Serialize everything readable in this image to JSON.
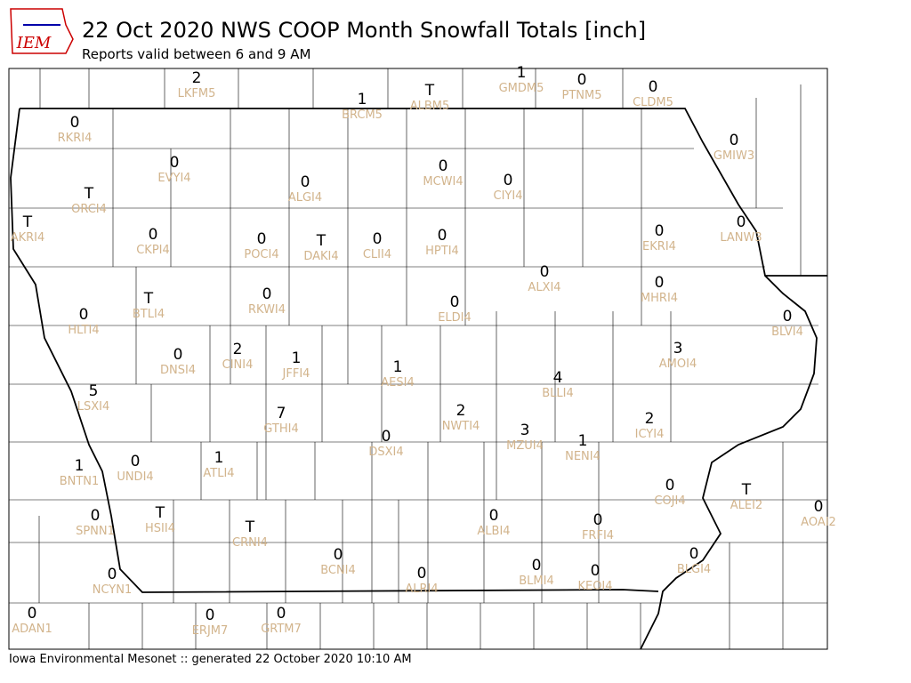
{
  "header": {
    "logo": "IEM",
    "title": "22 Oct 2020 NWS COOP Month Snowfall Totals [inch]",
    "subtitle": "Reports valid between 6 and 9 AM"
  },
  "stations": [
    {
      "value": 2,
      "id": "LKFM5"
    },
    {
      "value": 1,
      "id": "BRCM5"
    },
    {
      "value": "T",
      "id": "ALBM5"
    },
    {
      "value": 1,
      "id": "GMDM5"
    },
    {
      "value": 0,
      "id": "PTNM5"
    },
    {
      "value": 0,
      "id": "CLDM5"
    },
    {
      "value": 0,
      "id": "RKRI4"
    },
    {
      "value": 0,
      "id": "GMIW3"
    },
    {
      "value": 0,
      "id": "EVYI4"
    },
    {
      "value": 0,
      "id": "ALGI4"
    },
    {
      "value": 0,
      "id": "MCWI4"
    },
    {
      "value": 0,
      "id": "CIYI4"
    },
    {
      "value": "T",
      "id": "ORCI4"
    },
    {
      "value": "T",
      "id": "AKRI4"
    },
    {
      "value": 0,
      "id": "EKRI4"
    },
    {
      "value": 0,
      "id": "LANW3"
    },
    {
      "value": 0,
      "id": "CKPI4"
    },
    {
      "value": 0,
      "id": "POCI4"
    },
    {
      "value": "T",
      "id": "DAKI4"
    },
    {
      "value": 0,
      "id": "CLII4"
    },
    {
      "value": 0,
      "id": "HPTI4"
    },
    {
      "value": 0,
      "id": "ALXI4"
    },
    {
      "value": 0,
      "id": "MHRI4"
    },
    {
      "value": "T",
      "id": "BTLI4"
    },
    {
      "value": 0,
      "id": "RKWI4"
    },
    {
      "value": 0,
      "id": "ELDI4"
    },
    {
      "value": 0,
      "id": "HLTI4"
    },
    {
      "value": 0,
      "id": "BLVI4"
    },
    {
      "value": 3,
      "id": "AMOI4"
    },
    {
      "value": 0,
      "id": "DNSI4"
    },
    {
      "value": 2,
      "id": "CINI4"
    },
    {
      "value": 1,
      "id": "JFFI4"
    },
    {
      "value": 1,
      "id": "AESI4"
    },
    {
      "value": 4,
      "id": "BLLI4"
    },
    {
      "value": 5,
      "id": "LSXI4"
    },
    {
      "value": 7,
      "id": "GTHI4"
    },
    {
      "value": 2,
      "id": "NWTI4"
    },
    {
      "value": 2,
      "id": "ICYI4"
    },
    {
      "value": 3,
      "id": "MZUI4"
    },
    {
      "value": 1,
      "id": "NENI4"
    },
    {
      "value": 0,
      "id": "DSXI4"
    },
    {
      "value": 1,
      "id": "ATLI4"
    },
    {
      "value": 0,
      "id": "UNDI4"
    },
    {
      "value": 1,
      "id": "BNTN1"
    },
    {
      "value": 0,
      "id": "COJI4"
    },
    {
      "value": "T",
      "id": "ALEI2"
    },
    {
      "value": 0,
      "id": "AOAI2"
    },
    {
      "value": "T",
      "id": "HSII4"
    },
    {
      "value": 0,
      "id": "SPNN1"
    },
    {
      "value": 0,
      "id": "ALBI4"
    },
    {
      "value": "T",
      "id": "CRNI4"
    },
    {
      "value": 0,
      "id": "FRFI4"
    },
    {
      "value": 0,
      "id": "BCNI4"
    },
    {
      "value": 0,
      "id": "BLGI4"
    },
    {
      "value": 0,
      "id": "BLMI4"
    },
    {
      "value": 0,
      "id": "NCYN1"
    },
    {
      "value": 0,
      "id": "ALRI4"
    },
    {
      "value": 0,
      "id": "KEOI4"
    },
    {
      "value": 0,
      "id": "ADAN1"
    },
    {
      "value": 0,
      "id": "ERJM7"
    },
    {
      "value": 0,
      "id": "GRTM7"
    }
  ],
  "footer": "Iowa Environmental Mesonet :: generated 22 October 2020 10:10 AM"
}
